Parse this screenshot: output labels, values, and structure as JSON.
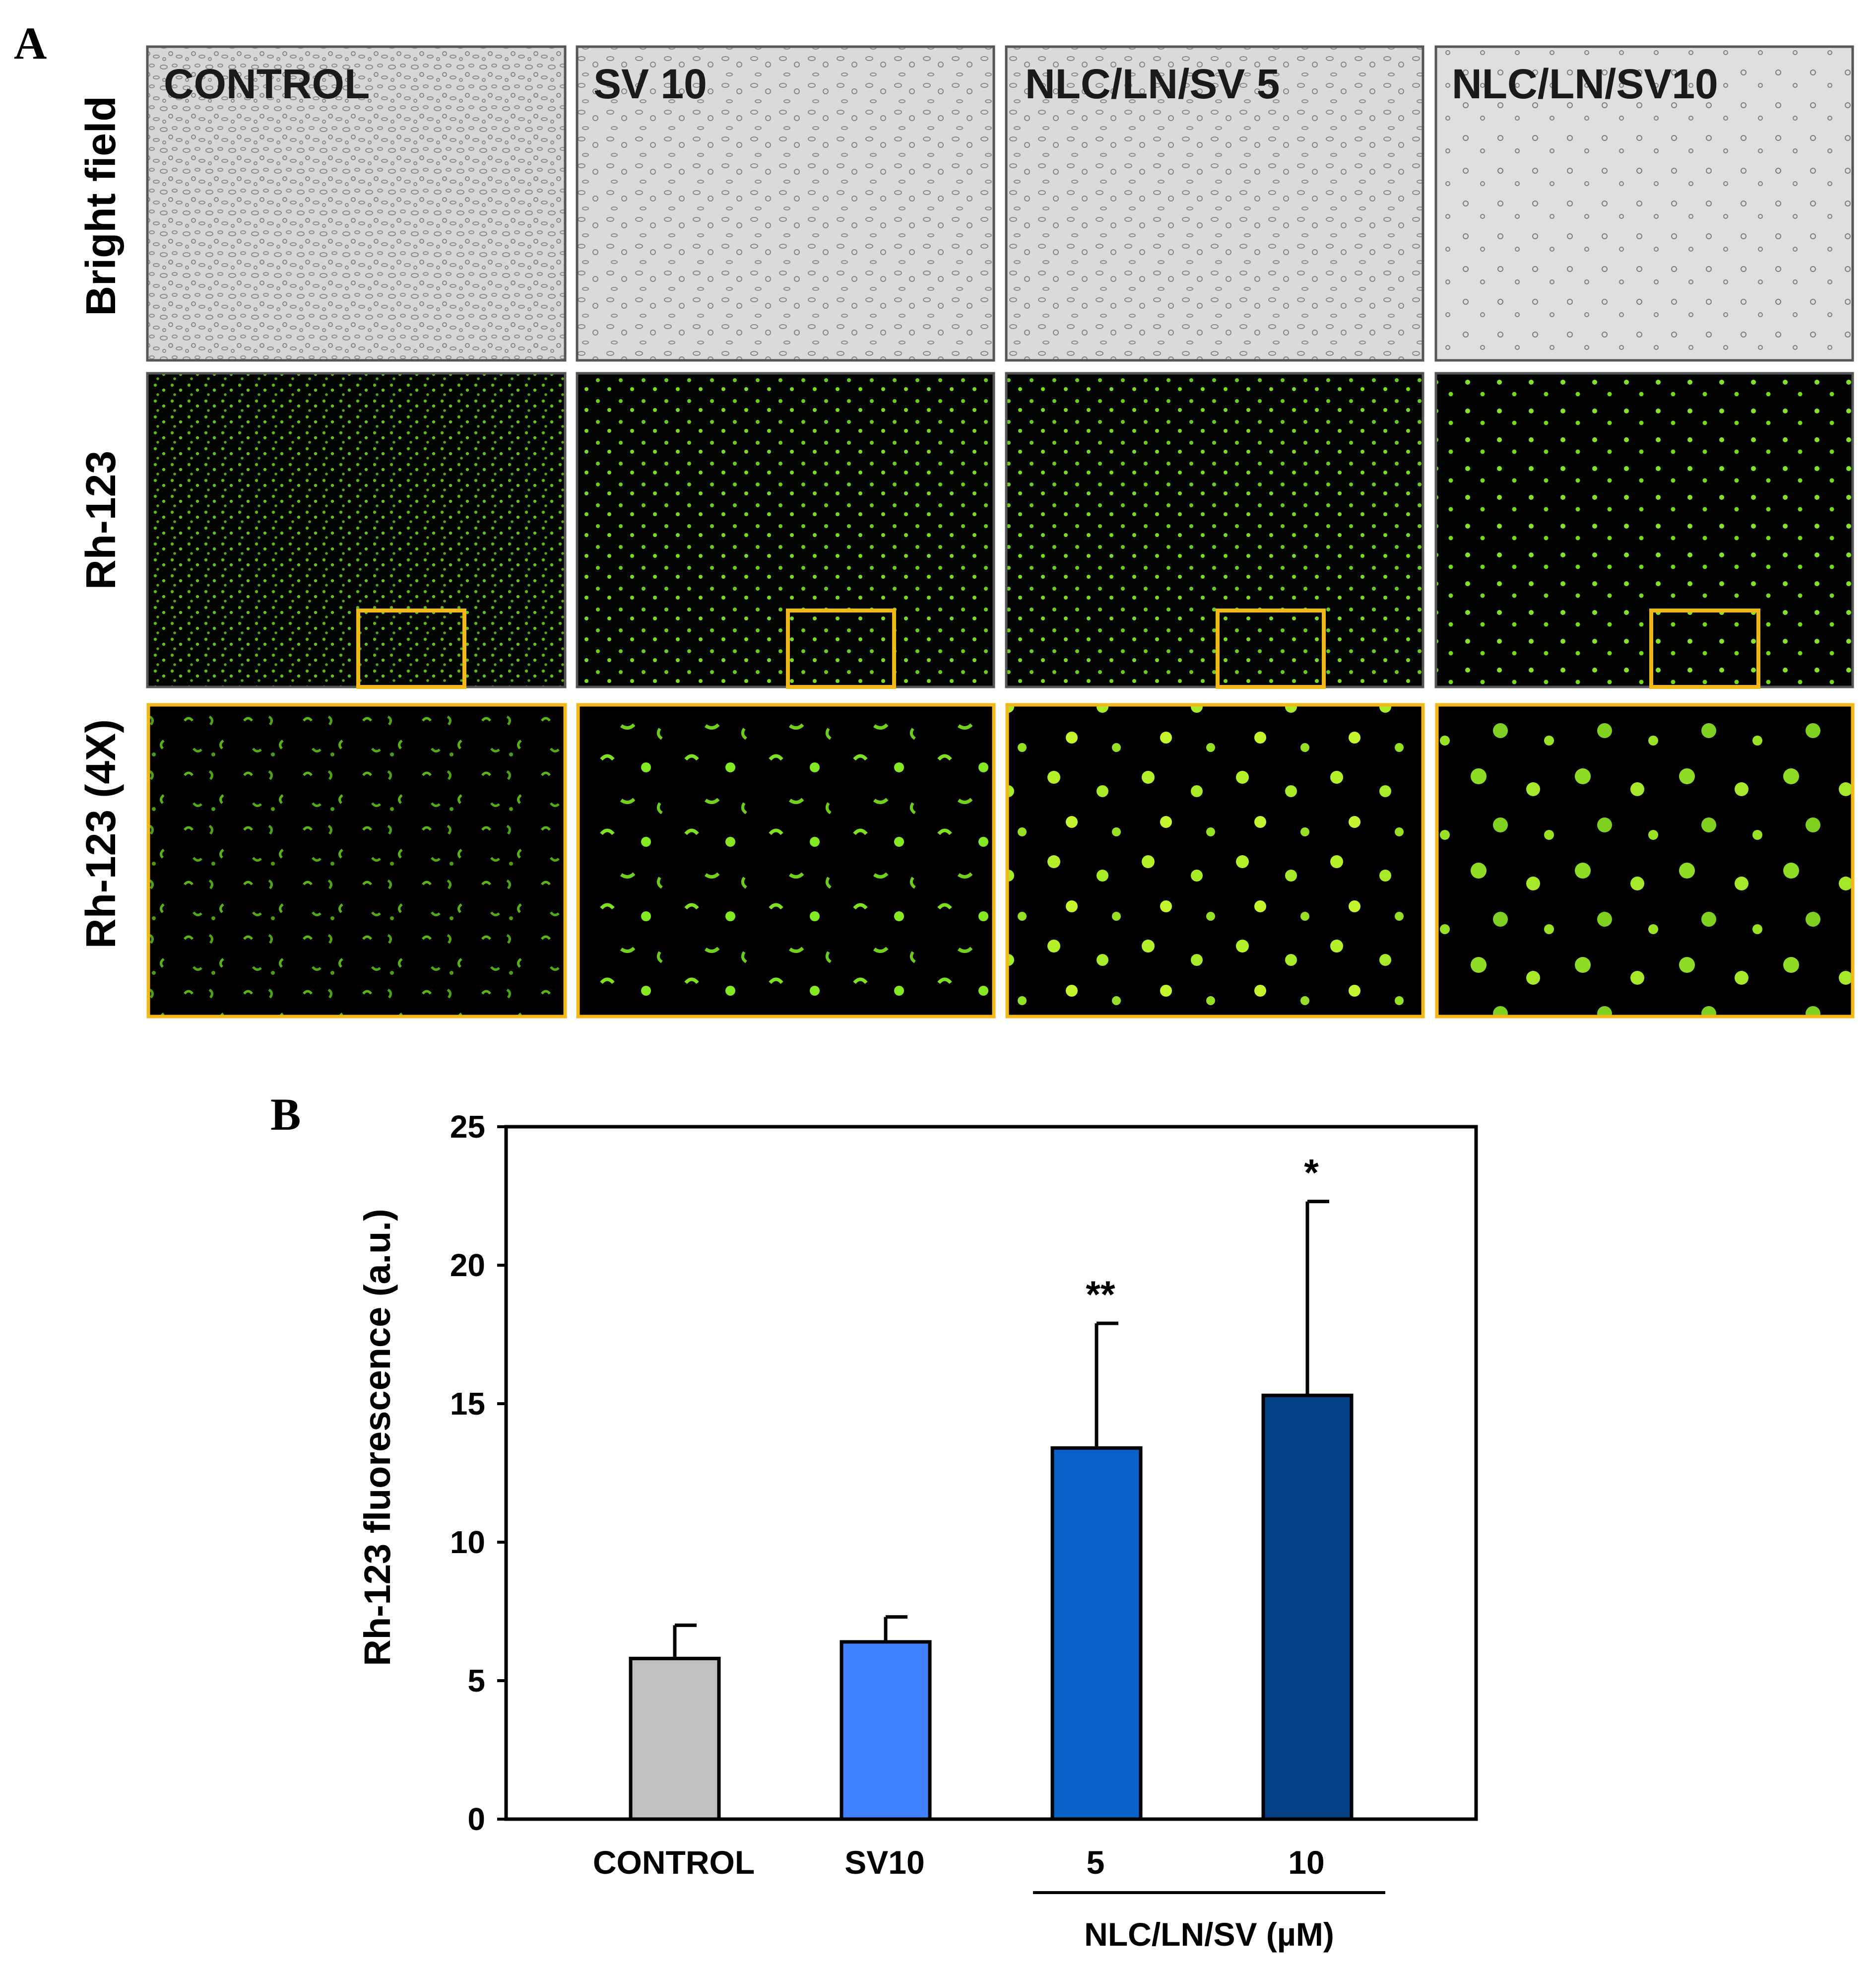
{
  "panel_a": {
    "letter": "A",
    "columns": [
      "CONTROL",
      "SV 10",
      "NLC/LN/SV 5",
      "NLC/LN/SV10"
    ],
    "rows": [
      "Bright field",
      "Rh-123",
      "Rh-123 (4X)"
    ],
    "colors": {
      "fluor": "#7fe01a",
      "zoom_border": "#f0b818",
      "tile_border": "#555555"
    }
  },
  "panel_b": {
    "letter": "B",
    "group_label": "NLC/LN/SV (µM)"
  },
  "chart_data": {
    "type": "bar",
    "categories": [
      "CONTROL",
      "SV10",
      "5",
      "10"
    ],
    "values": [
      5.8,
      6.4,
      13.4,
      15.3
    ],
    "errors": [
      1.2,
      0.9,
      4.5,
      7.0
    ],
    "significance": [
      "",
      "",
      "**",
      "*"
    ],
    "bar_colors": [
      "#c0c0c0",
      "#4080ff",
      "#0a62c8",
      "#053f86"
    ],
    "title": "",
    "xlabel": "",
    "ylabel": "Rh-123 fluorescence (a.u.)",
    "ylim": [
      0,
      25
    ],
    "yticks": [
      0,
      5,
      10,
      15,
      20,
      25
    ],
    "grid": false,
    "legend": "none"
  }
}
